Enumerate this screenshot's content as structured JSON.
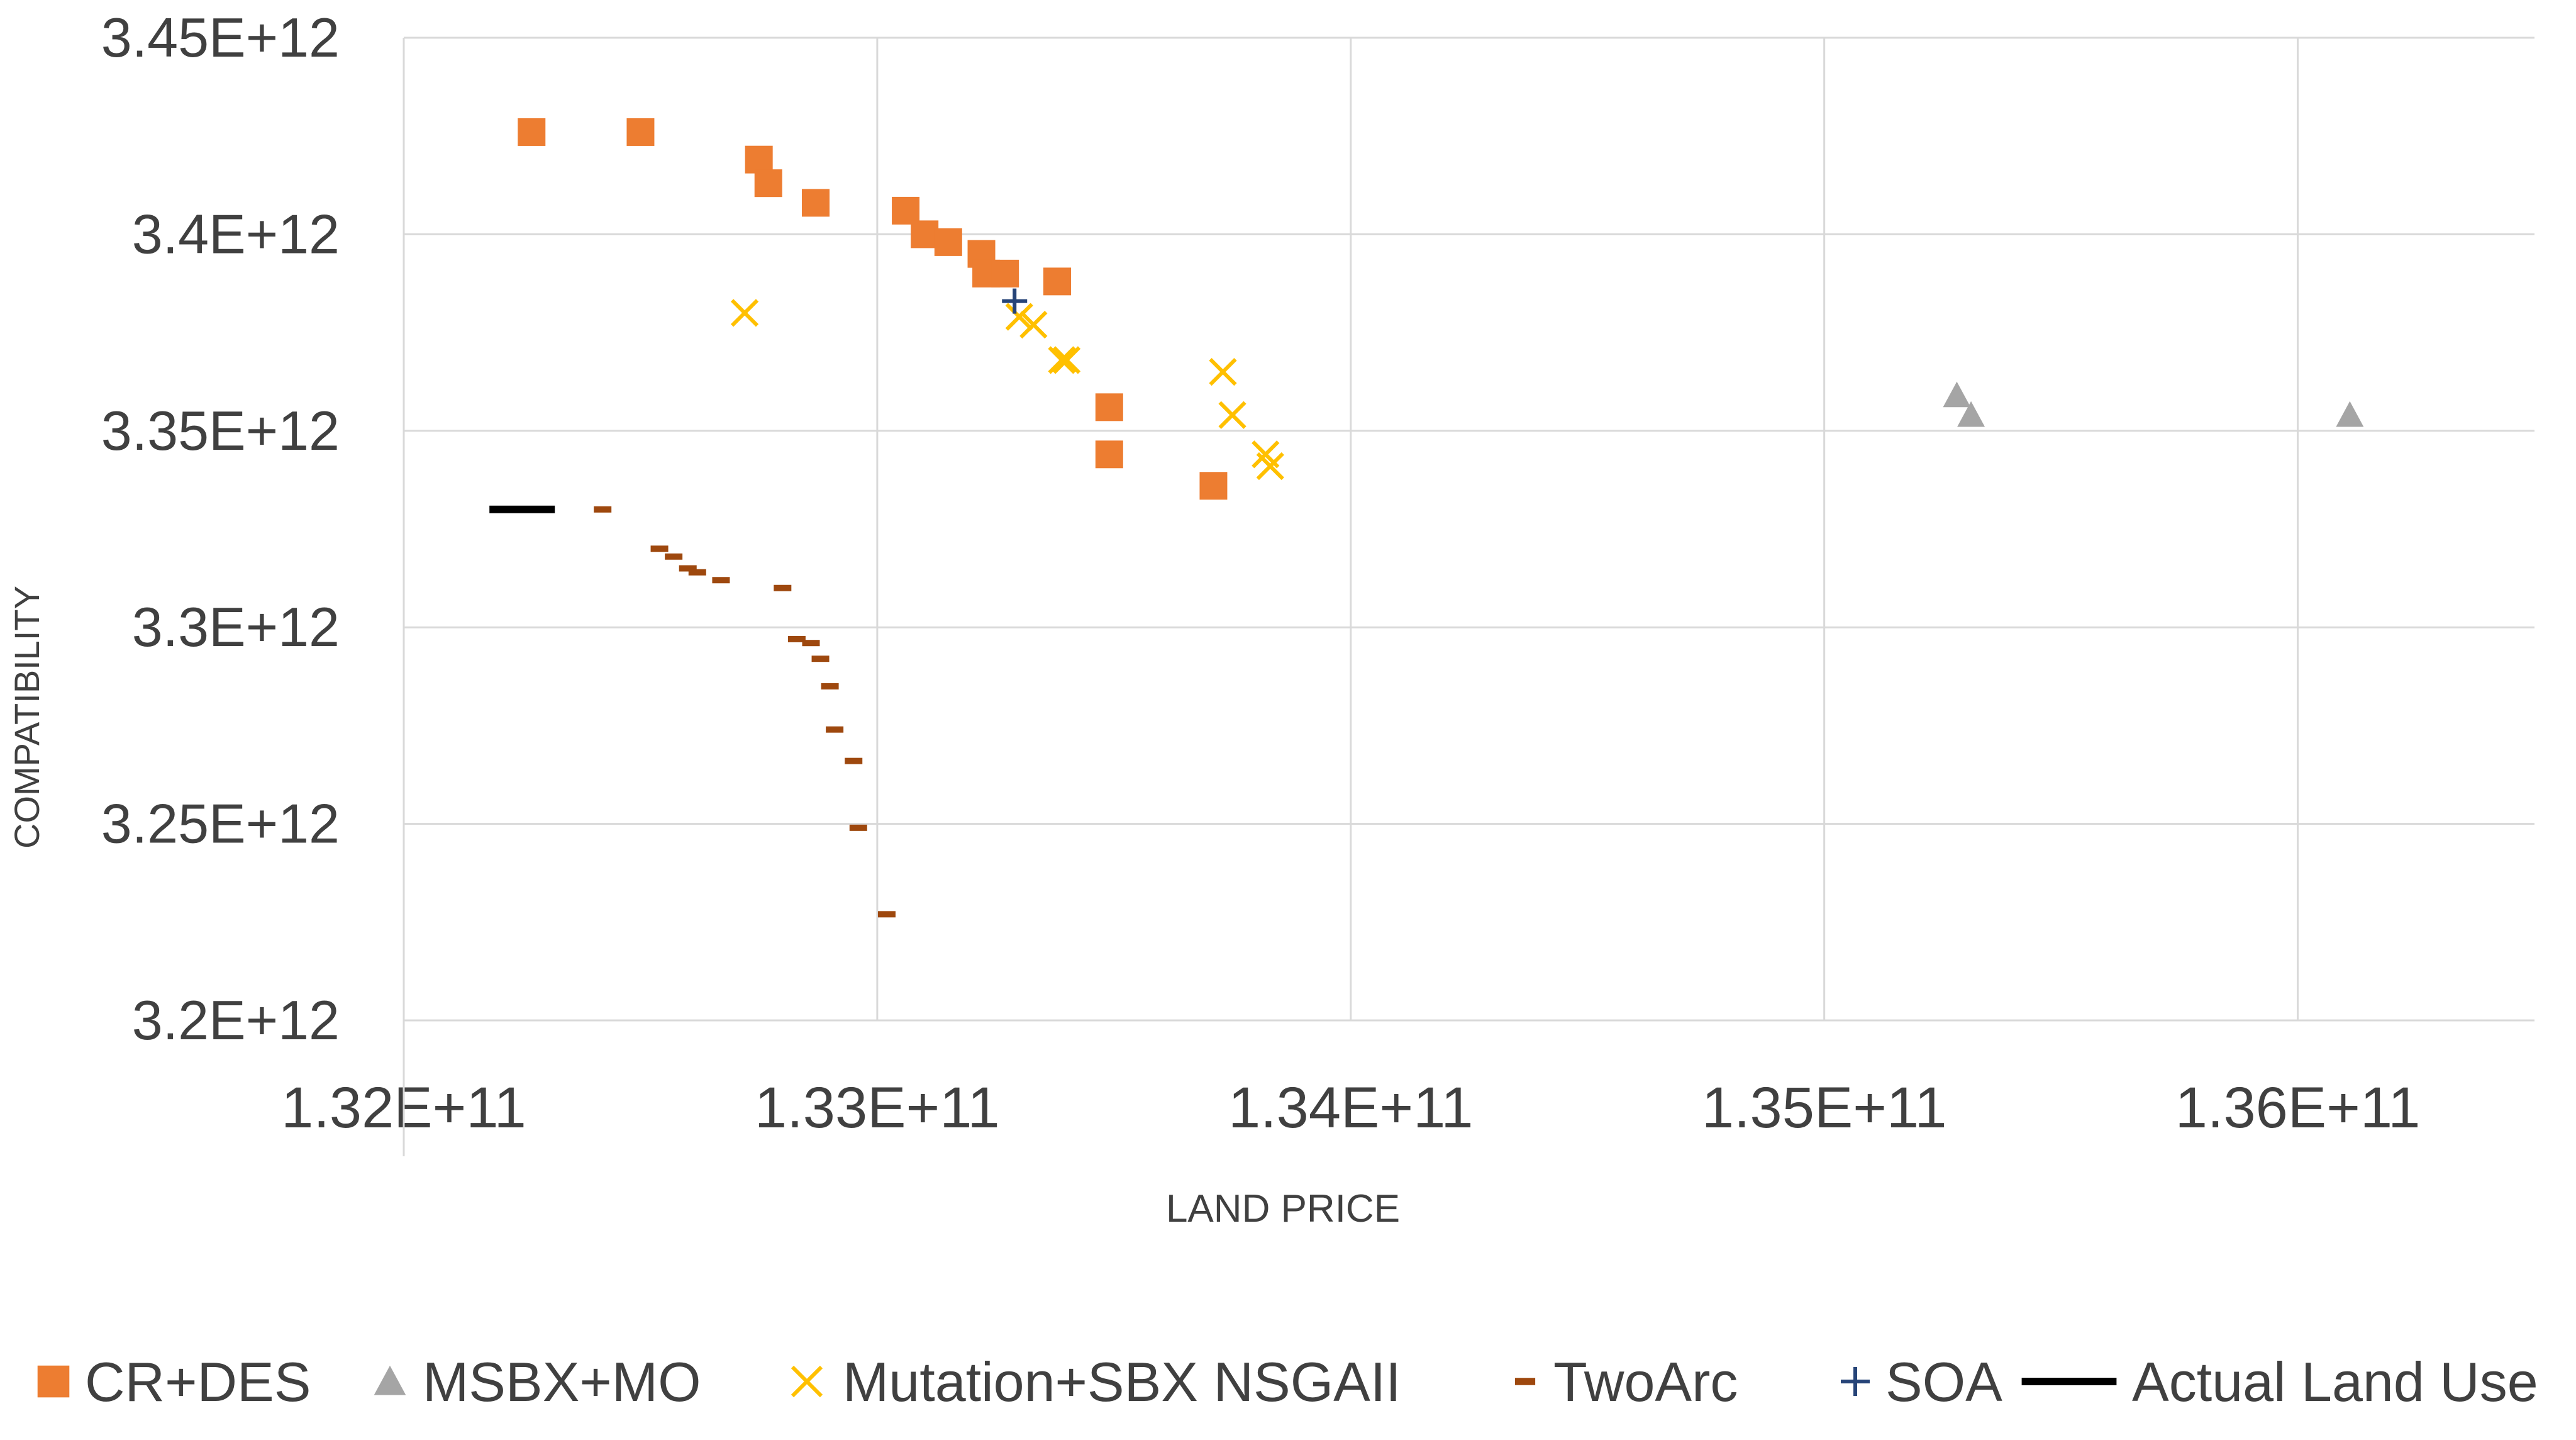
{
  "chart_data": {
    "type": "scatter",
    "xlabel": "LAND PRICE",
    "ylabel": "COMPATIBILITY",
    "xlim": [
      132000000000.0,
      136500000000.0
    ],
    "ylim": [
      3200000000000.0,
      3450000000000.0
    ],
    "x_ticks": [
      {
        "value": 132000000000.0,
        "label": "1.32E+11"
      },
      {
        "value": 133000000000.0,
        "label": "1.33E+11"
      },
      {
        "value": 134000000000.0,
        "label": "1.34E+11"
      },
      {
        "value": 135000000000.0,
        "label": "1.35E+11"
      },
      {
        "value": 136000000000.0,
        "label": "1.36E+11"
      }
    ],
    "y_ticks": [
      {
        "value": 3200000000000.0,
        "label": "3.2E+12"
      },
      {
        "value": 3250000000000.0,
        "label": "3.25E+12"
      },
      {
        "value": 3300000000000.0,
        "label": "3.3E+12"
      },
      {
        "value": 3350000000000.0,
        "label": "3.35E+12"
      },
      {
        "value": 3400000000000.0,
        "label": "3.4E+12"
      },
      {
        "value": 3450000000000.0,
        "label": "3.45E+12"
      }
    ],
    "grid": true,
    "legend_position": "bottom",
    "series": [
      {
        "name": "CR+DES",
        "marker": "square",
        "color": "#ED7D31",
        "points": [
          [
            132270000000.0,
            3426000000000.0
          ],
          [
            132500000000.0,
            3426000000000.0
          ],
          [
            132750000000.0,
            3419000000000.0
          ],
          [
            132770000000.0,
            3413000000000.0
          ],
          [
            132870000000.0,
            3408000000000.0
          ],
          [
            133060000000.0,
            3406000000000.0
          ],
          [
            133100000000.0,
            3400000000000.0
          ],
          [
            133150000000.0,
            3398000000000.0
          ],
          [
            133220000000.0,
            3395000000000.0
          ],
          [
            133230000000.0,
            3390000000000.0
          ],
          [
            133270000000.0,
            3390000000000.0
          ],
          [
            133380000000.0,
            3388000000000.0
          ],
          [
            133490000000.0,
            3356000000000.0
          ],
          [
            133490000000.0,
            3344000000000.0
          ],
          [
            133710000000.0,
            3336000000000.0
          ]
        ]
      },
      {
        "name": "MSBX+MO",
        "marker": "triangle",
        "color": "#A5A5A5",
        "points": [
          [
            135280000000.0,
            3359000000000.0
          ],
          [
            135310000000.0,
            3354000000000.0
          ],
          [
            136110000000.0,
            3354000000000.0
          ]
        ]
      },
      {
        "name": "Mutation+SBX NSGAII",
        "marker": "x",
        "color": "#FFC000",
        "points": [
          [
            132720000000.0,
            3380000000000.0
          ],
          [
            133300000000.0,
            3379000000000.0
          ],
          [
            133330000000.0,
            3377000000000.0
          ],
          [
            133390000000.0,
            3368000000000.0
          ],
          [
            133400000000.0,
            3368000000000.0
          ],
          [
            133730000000.0,
            3365000000000.0
          ],
          [
            133750000000.0,
            3354000000000.0
          ],
          [
            133820000000.0,
            3344000000000.0
          ],
          [
            133830000000.0,
            3341000000000.0
          ]
        ]
      },
      {
        "name": "TwoArc",
        "marker": "dash",
        "color": "#9E480E",
        "points": [
          [
            132420000000.0,
            3330000000000.0
          ],
          [
            132540000000.0,
            3320000000000.0
          ],
          [
            132570000000.0,
            3318000000000.0
          ],
          [
            132600000000.0,
            3315000000000.0
          ],
          [
            132620000000.0,
            3314000000000.0
          ],
          [
            132670000000.0,
            3312000000000.0
          ],
          [
            132800000000.0,
            3310000000000.0
          ],
          [
            132830000000.0,
            3297000000000.0
          ],
          [
            132860000000.0,
            3296000000000.0
          ],
          [
            132880000000.0,
            3292000000000.0
          ],
          [
            132900000000.0,
            3285000000000.0
          ],
          [
            132910000000.0,
            3274000000000.0
          ],
          [
            132950000000.0,
            3266000000000.0
          ],
          [
            132960000000.0,
            3249000000000.0
          ],
          [
            133020000000.0,
            3227000000000.0
          ]
        ]
      },
      {
        "name": "SOA",
        "marker": "plus",
        "color": "#264478",
        "points": [
          [
            133290000000.0,
            3383000000000.0
          ]
        ]
      },
      {
        "name": "Actual Land Use",
        "marker": "bar",
        "color": "#000000",
        "points": [
          [
            132250000000.0,
            3330000000000.0
          ]
        ]
      }
    ]
  }
}
